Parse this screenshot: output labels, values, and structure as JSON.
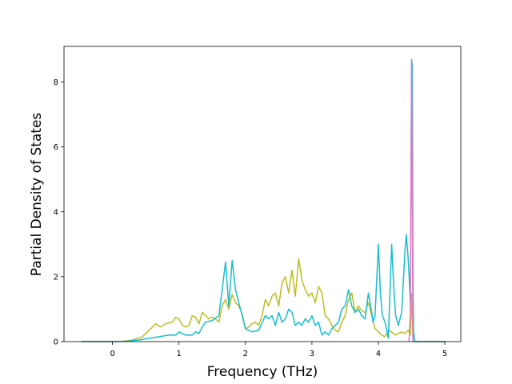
{
  "chart_data": {
    "type": "line",
    "title": "",
    "xlabel": "Frequency (THz)",
    "ylabel": "Partial Density of States",
    "xlim": [
      -0.73,
      5.24
    ],
    "ylim": [
      0,
      9.1
    ],
    "x_ticks": [
      0,
      1,
      2,
      3,
      4,
      5
    ],
    "y_ticks": [
      0,
      2,
      4,
      6,
      8
    ],
    "x_tick_labels": [
      "0",
      "1",
      "2",
      "3",
      "4",
      "5"
    ],
    "y_tick_labels": [
      "0",
      "2",
      "4",
      "6",
      "8"
    ],
    "grid": false,
    "series": [
      {
        "color": "#bcbd22",
        "x": [
          -0.47,
          0.0,
          0.15,
          0.3,
          0.45,
          0.55,
          0.6,
          0.65,
          0.72,
          0.8,
          0.9,
          0.95,
          1.0,
          1.05,
          1.1,
          1.15,
          1.2,
          1.25,
          1.3,
          1.35,
          1.4,
          1.45,
          1.5,
          1.55,
          1.6,
          1.65,
          1.7,
          1.75,
          1.8,
          1.85,
          1.9,
          1.95,
          2.0,
          2.05,
          2.1,
          2.15,
          2.2,
          2.25,
          2.3,
          2.35,
          2.4,
          2.45,
          2.5,
          2.55,
          2.6,
          2.65,
          2.7,
          2.75,
          2.8,
          2.85,
          2.9,
          2.95,
          3.0,
          3.05,
          3.1,
          3.15,
          3.2,
          3.25,
          3.3,
          3.35,
          3.4,
          3.45,
          3.5,
          3.55,
          3.6,
          3.65,
          3.7,
          3.75,
          3.8,
          3.85,
          3.9,
          3.95,
          4.0,
          4.05,
          4.1,
          4.15,
          4.2,
          4.25,
          4.3,
          4.35,
          4.4,
          4.45,
          4.48,
          4.5,
          4.52,
          4.55,
          5.0
        ],
        "y": [
          0.0,
          0.0,
          0.01,
          0.05,
          0.15,
          0.35,
          0.45,
          0.55,
          0.45,
          0.55,
          0.6,
          0.75,
          0.7,
          0.5,
          0.45,
          0.5,
          0.8,
          0.75,
          0.55,
          0.9,
          0.8,
          0.7,
          0.75,
          0.7,
          0.6,
          1.1,
          1.3,
          1.0,
          1.45,
          1.2,
          1.1,
          0.85,
          0.4,
          0.45,
          0.55,
          0.6,
          0.5,
          0.8,
          1.3,
          1.1,
          1.4,
          1.5,
          1.1,
          1.8,
          2.0,
          1.5,
          2.2,
          1.4,
          2.55,
          1.9,
          1.6,
          1.4,
          1.5,
          1.2,
          1.7,
          1.5,
          0.8,
          0.7,
          0.5,
          0.35,
          0.3,
          0.6,
          0.8,
          1.3,
          1.5,
          0.9,
          1.1,
          0.95,
          0.9,
          1.2,
          0.8,
          0.4,
          0.3,
          0.2,
          0.15,
          0.35,
          0.3,
          0.2,
          0.25,
          0.3,
          0.25,
          0.35,
          0.2,
          1.5,
          0.0,
          0.0,
          0.0
        ]
      },
      {
        "color": "#17becf",
        "x": [
          -0.47,
          0.0,
          0.2,
          0.4,
          0.55,
          0.7,
          0.85,
          0.95,
          1.0,
          1.05,
          1.1,
          1.2,
          1.25,
          1.3,
          1.35,
          1.4,
          1.5,
          1.6,
          1.65,
          1.7,
          1.75,
          1.8,
          1.85,
          1.9,
          1.95,
          2.0,
          2.1,
          2.2,
          2.3,
          2.35,
          2.4,
          2.45,
          2.5,
          2.55,
          2.6,
          2.65,
          2.7,
          2.75,
          2.8,
          2.85,
          2.9,
          2.95,
          3.0,
          3.05,
          3.1,
          3.15,
          3.2,
          3.25,
          3.3,
          3.35,
          3.4,
          3.45,
          3.5,
          3.55,
          3.6,
          3.65,
          3.7,
          3.75,
          3.8,
          3.85,
          3.9,
          3.92,
          3.95,
          4.0,
          4.03,
          4.06,
          4.1,
          4.15,
          4.2,
          4.23,
          4.26,
          4.3,
          4.35,
          4.4,
          4.42,
          4.45,
          4.48,
          4.5,
          4.51,
          4.52,
          4.53,
          4.55,
          5.0
        ],
        "y": [
          0.0,
          0.0,
          0.01,
          0.05,
          0.1,
          0.15,
          0.2,
          0.2,
          0.3,
          0.25,
          0.2,
          0.2,
          0.3,
          0.25,
          0.45,
          0.6,
          0.65,
          0.8,
          1.6,
          2.45,
          1.1,
          2.5,
          1.6,
          1.2,
          0.8,
          0.4,
          0.3,
          0.35,
          0.8,
          0.7,
          0.8,
          0.5,
          0.9,
          0.6,
          0.7,
          1.0,
          0.9,
          0.5,
          0.6,
          0.5,
          0.7,
          0.6,
          0.8,
          0.5,
          0.6,
          0.2,
          0.3,
          0.2,
          0.4,
          0.5,
          0.6,
          1.0,
          1.1,
          1.6,
          1.1,
          0.9,
          1.0,
          0.8,
          0.7,
          1.5,
          0.9,
          0.6,
          0.8,
          3.0,
          1.5,
          0.8,
          0.6,
          0.1,
          3.0,
          1.7,
          0.8,
          0.5,
          0.9,
          2.8,
          3.3,
          2.5,
          1.2,
          8.7,
          8.5,
          2.0,
          0.3,
          0.0,
          0.0
        ]
      },
      {
        "color": "#e377c2",
        "x": [
          4.46,
          4.48,
          4.5,
          4.52
        ],
        "y": [
          0.0,
          0.8,
          8.7,
          0.0
        ]
      }
    ]
  }
}
